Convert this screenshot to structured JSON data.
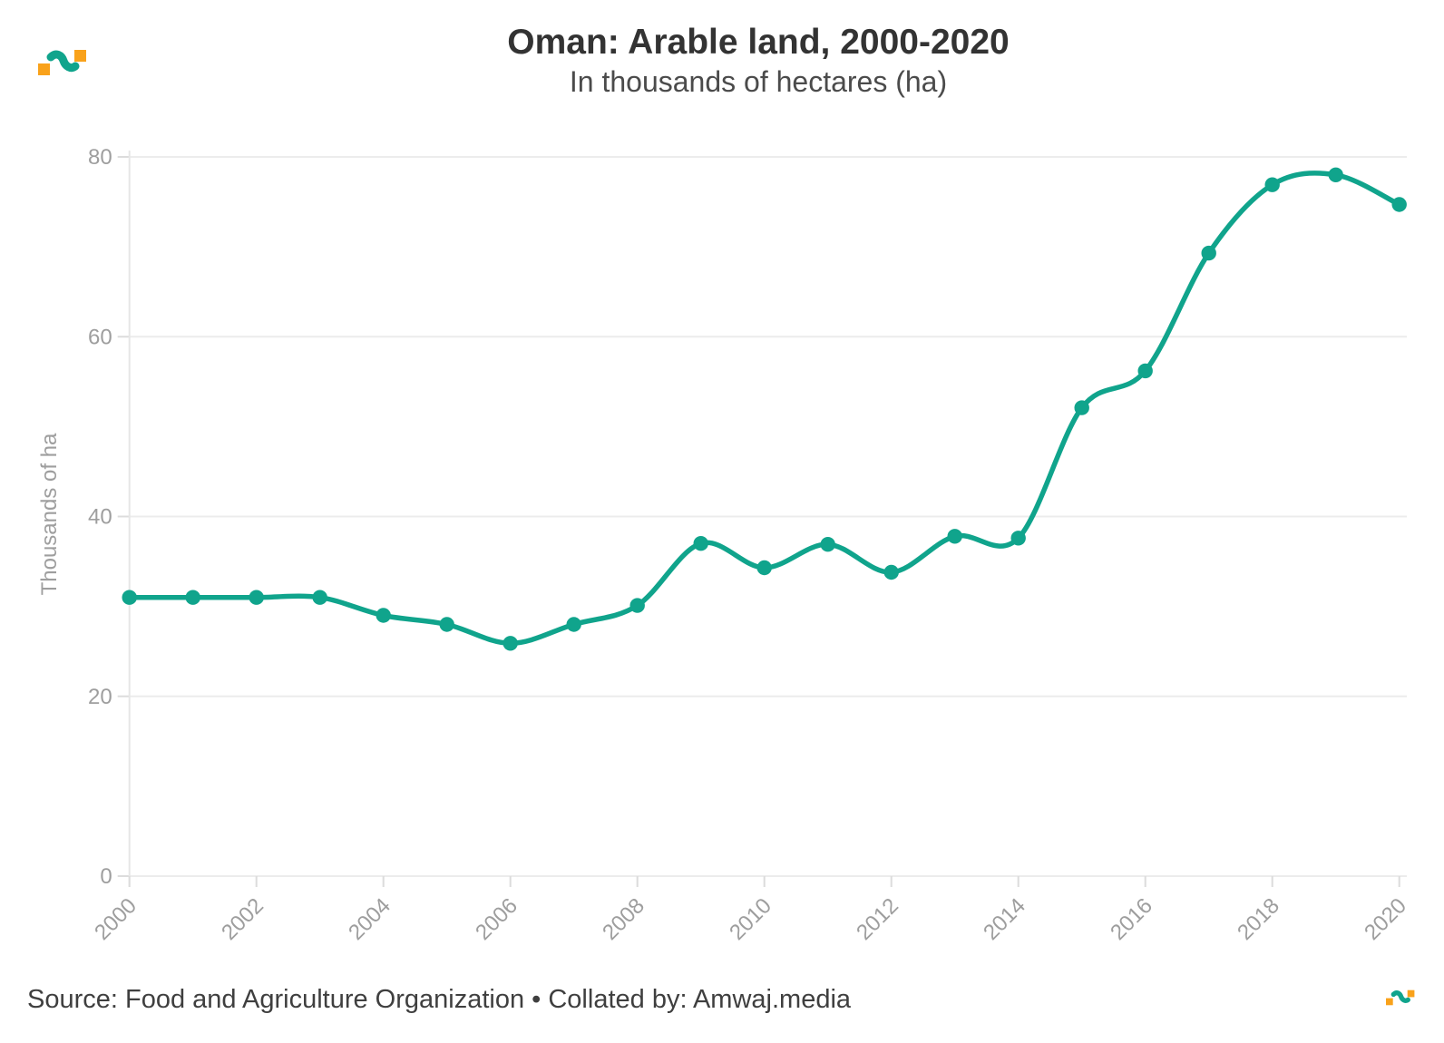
{
  "header": {
    "title": "Oman: Arable land, 2000-2020",
    "subtitle": "In thousands of hectares (ha)"
  },
  "footer": {
    "text": "Source: Food and Agriculture Organization • Collated by: Amwaj.media"
  },
  "branding": {
    "logo_name": "amwaj-media-logo",
    "teal": "#10a48c",
    "orange": "#f9a21b"
  },
  "chart_data": {
    "type": "line",
    "title": "Oman: Arable land, 2000-2020",
    "subtitle": "In thousands of hectares (ha)",
    "xlabel": "",
    "ylabel": "Thousands of ha",
    "x": [
      2000,
      2001,
      2002,
      2003,
      2004,
      2005,
      2006,
      2007,
      2008,
      2009,
      2010,
      2011,
      2012,
      2013,
      2014,
      2015,
      2016,
      2017,
      2018,
      2019,
      2020
    ],
    "series": [
      {
        "name": "Arable land (thousands of ha)",
        "values": [
          31,
          31,
          31,
          31,
          29,
          28,
          25.9,
          28,
          30.1,
          37,
          34.3,
          36.9,
          33.8,
          37.8,
          37.6,
          52.1,
          56.2,
          69.3,
          76.9,
          78,
          74.7
        ],
        "color": "#10a48c"
      }
    ],
    "ylim": [
      0,
      80
    ],
    "yticks": [
      0,
      20,
      40,
      60,
      80
    ],
    "xticks": [
      2000,
      2002,
      2004,
      2006,
      2008,
      2010,
      2012,
      2014,
      2016,
      2018,
      2020
    ],
    "grid": "horizontal",
    "legend_position": "none",
    "line_smoothing": true,
    "markers": true,
    "colors": {
      "line": "#10a48c",
      "grid": "#ececec",
      "axis_line": "#e6e6e6",
      "tick": "#dcdcdc",
      "axis_text": "#9e9e9e",
      "title": "#333333",
      "subtitle": "#4b4b4b",
      "footer": "#3f3f3f"
    }
  }
}
